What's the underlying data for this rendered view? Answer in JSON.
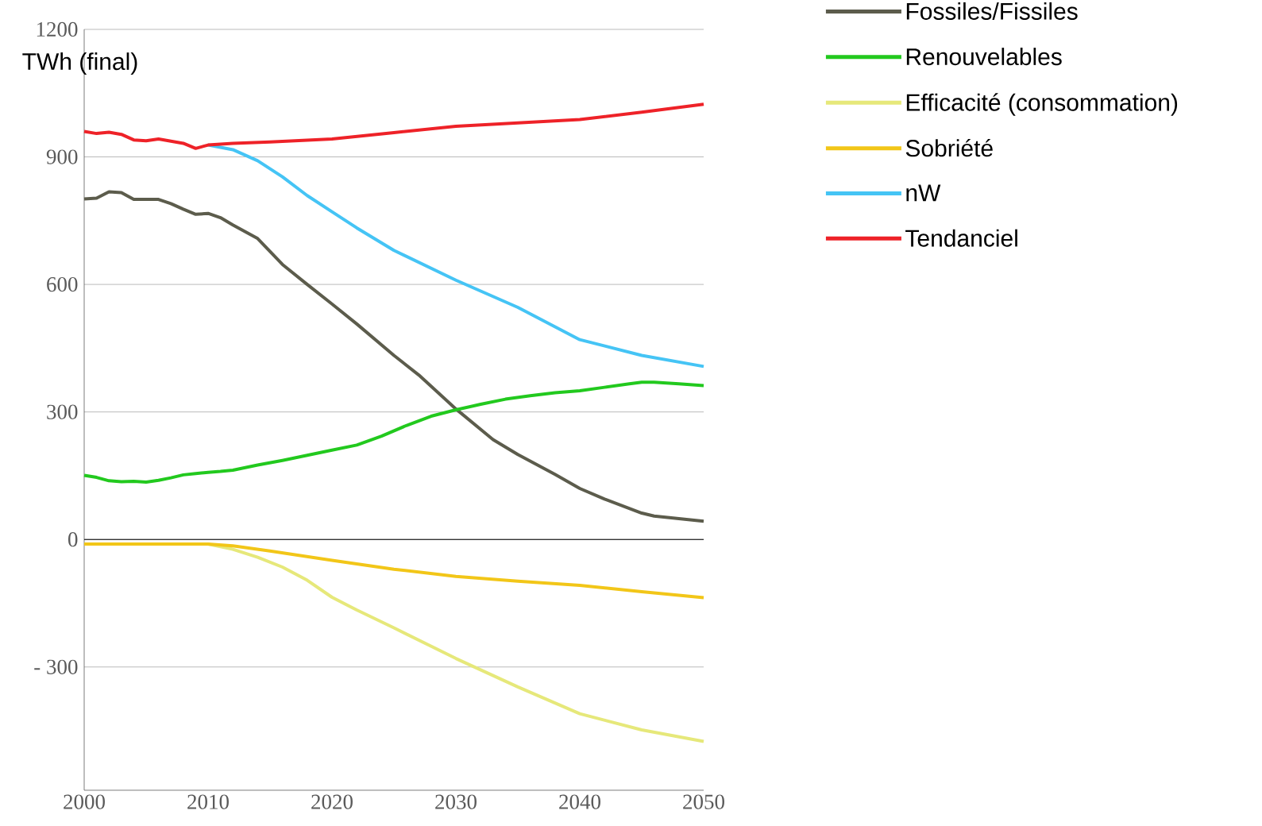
{
  "chart_data": {
    "type": "line",
    "ylabel": "TWh  (final)",
    "xlim": [
      2000,
      2050
    ],
    "xticks": [
      2000,
      2010,
      2020,
      2030,
      2040,
      2050
    ],
    "ylim": [
      -590,
      1200
    ],
    "yticks": [
      {
        "value": -300,
        "label": "-  300"
      },
      0,
      300,
      600,
      900,
      1200
    ],
    "grid": "y",
    "legend": "right",
    "line_style": "solid",
    "marker": "none",
    "ref_lines": [
      {
        "axis": "y",
        "value": 0,
        "color": "#000000"
      }
    ],
    "series": [
      {
        "name": "Fossiles/Fissiles",
        "color": "#5c5c4c",
        "x": [
          2000,
          2001,
          2002,
          2003,
          2004,
          2006,
          2007,
          2008,
          2009,
          2010,
          2011,
          2012,
          2014,
          2016,
          2018,
          2020,
          2022,
          2025,
          2027,
          2030,
          2033,
          2035,
          2038,
          2040,
          2042,
          2045,
          2046,
          2050
        ],
        "values": [
          801,
          803,
          818,
          816,
          800,
          800,
          790,
          777,
          765,
          767,
          757,
          740,
          708,
          647,
          600,
          554,
          507,
          433,
          387,
          307,
          235,
          200,
          153,
          120,
          95,
          62,
          55,
          43
        ]
      },
      {
        "name": "Renouvelables",
        "color": "#22c91e",
        "x": [
          2000,
          2001,
          2002,
          2003,
          2004,
          2005,
          2006,
          2007,
          2008,
          2009,
          2010,
          2011,
          2012,
          2014,
          2016,
          2018,
          2020,
          2022,
          2024,
          2026,
          2028,
          2030,
          2032,
          2034,
          2036,
          2038,
          2040,
          2042,
          2044,
          2045,
          2046,
          2048,
          2050
        ],
        "values": [
          151,
          146,
          138,
          136,
          137,
          135,
          139,
          145,
          152,
          155,
          158,
          160,
          163,
          175,
          186,
          198,
          210,
          222,
          243,
          268,
          290,
          305,
          318,
          330,
          338,
          345,
          350,
          358,
          366,
          370,
          370,
          366,
          362
        ]
      },
      {
        "name": "Efficacité (consommation)",
        "color": "#e6e87a",
        "x": [
          2000,
          2010,
          2012,
          2014,
          2016,
          2018,
          2020,
          2022,
          2025,
          2030,
          2035,
          2040,
          2045,
          2050
        ],
        "values": [
          -11,
          -11,
          -23,
          -42,
          -65,
          -96,
          -136,
          -166,
          -208,
          -280,
          -347,
          -410,
          -448,
          -475
        ]
      },
      {
        "name": "Sobriété",
        "color": "#f2c618",
        "x": [
          2000,
          2010,
          2012,
          2015,
          2020,
          2025,
          2030,
          2035,
          2040,
          2045,
          2050
        ],
        "values": [
          -11,
          -11,
          -15,
          -27,
          -49,
          -70,
          -87,
          -98,
          -108,
          -123,
          -137
        ]
      },
      {
        "name": "nW",
        "color": "#45c4f5",
        "x": [
          2010,
          2012,
          2014,
          2016,
          2018,
          2020,
          2022,
          2025,
          2030,
          2035,
          2040,
          2045,
          2050
        ],
        "values": [
          928,
          917,
          891,
          853,
          809,
          771,
          733,
          680,
          610,
          546,
          470,
          433,
          407
        ]
      },
      {
        "name": "Tendanciel",
        "color": "#ee2228",
        "x": [
          2000,
          2001,
          2002,
          2003,
          2004,
          2005,
          2006,
          2007,
          2008,
          2009,
          2010,
          2012,
          2015,
          2020,
          2025,
          2030,
          2035,
          2040,
          2045,
          2050
        ],
        "values": [
          960,
          955,
          958,
          953,
          940,
          938,
          942,
          937,
          932,
          920,
          928,
          932,
          935,
          942,
          957,
          972,
          980,
          988,
          1005,
          1024
        ]
      }
    ]
  }
}
